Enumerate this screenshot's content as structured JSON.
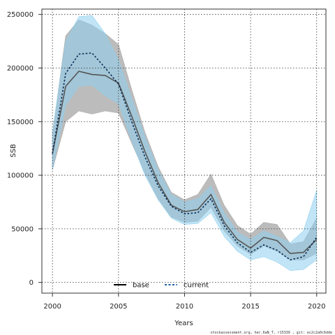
{
  "chart_data": {
    "type": "line",
    "xlabel": "Years",
    "ylabel": "SSB",
    "xlim": [
      1999.2,
      2020.7
    ],
    "ylim": [
      -10000,
      255000
    ],
    "xticks": [
      2000,
      2005,
      2010,
      2015,
      2020
    ],
    "yticks": [
      0,
      50000,
      100000,
      150000,
      200000,
      250000
    ],
    "grid": true,
    "legend_position": "bottom-center",
    "x": [
      2000,
      2001,
      2002,
      2003,
      2004,
      2005,
      2006,
      2007,
      2008,
      2009,
      2010,
      2011,
      2012,
      2013,
      2014,
      2015,
      2016,
      2017,
      2018,
      2019,
      2020
    ],
    "series": [
      {
        "name": "base",
        "style": "solid",
        "color": "#555555",
        "band_color": "#a6a6a6",
        "values": [
          120000,
          183000,
          197000,
          194000,
          193000,
          186000,
          155000,
          122000,
          93000,
          72000,
          66000,
          68000,
          82000,
          56000,
          40000,
          32000,
          42000,
          39000,
          27000,
          28000,
          40000
        ],
        "lower": [
          105000,
          150000,
          160000,
          157000,
          160000,
          158000,
          130000,
          102000,
          78000,
          61000,
          56000,
          57000,
          70000,
          48000,
          34000,
          26000,
          34000,
          29000,
          21000,
          21000,
          27000
        ],
        "upper": [
          138000,
          230000,
          245000,
          240000,
          232000,
          222000,
          180000,
          140000,
          108000,
          84000,
          77000,
          82000,
          101000,
          72000,
          53000,
          45000,
          56000,
          54000,
          36000,
          38000,
          60000
        ]
      },
      {
        "name": "current",
        "style": "dashed",
        "color": "#0a2a55",
        "band_color": "#8ecfee",
        "values": [
          120000,
          195000,
          213000,
          214000,
          200000,
          185000,
          150000,
          117000,
          90000,
          71000,
          64000,
          65000,
          78000,
          53000,
          37000,
          28000,
          35000,
          30000,
          21000,
          24000,
          42000
        ],
        "lower": [
          105000,
          165000,
          183000,
          184000,
          174000,
          167000,
          132000,
          100000,
          77000,
          60000,
          54000,
          55000,
          65000,
          43000,
          29000,
          21000,
          24000,
          19000,
          11000,
          12000,
          21000
        ],
        "upper": [
          140000,
          225000,
          248000,
          249000,
          232000,
          208000,
          172000,
          136000,
          105000,
          82000,
          75000,
          78000,
          90000,
          65000,
          47000,
          40000,
          48000,
          43000,
          37000,
          48000,
          86000
        ]
      }
    ],
    "footnote": "stockassessment.org, her.6aN_T, r15339 , git: ec2c2a0c6dde"
  }
}
